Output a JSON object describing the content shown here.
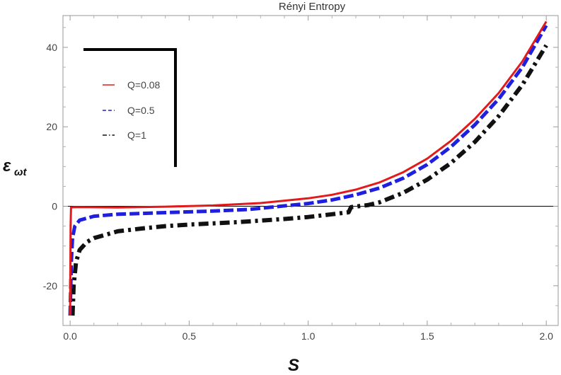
{
  "chart_data": {
    "type": "line",
    "title": "Rényi Entropy",
    "xlabel": "S",
    "ylabel_main": "ε",
    "ylabel_sub": "ωt",
    "xlim": [
      -0.03,
      2.05
    ],
    "ylim": [
      -30,
      48
    ],
    "x_ticks": [
      0.0,
      0.5,
      1.0,
      1.5,
      2.0
    ],
    "x_tick_labels": [
      "0.0",
      "0.5",
      "1.0",
      "1.5",
      "2.0"
    ],
    "y_ticks": [
      -20,
      0,
      20,
      40
    ],
    "y_tick_labels": [
      "-20",
      "0",
      "20",
      "40"
    ],
    "grid": false,
    "legend_position": "top-left",
    "series": [
      {
        "name": "Q=0.08",
        "color": "#e31a1c",
        "style": "solid",
        "points": [
          [
            0.0,
            -27.5
          ],
          [
            0.002,
            -5
          ],
          [
            0.004,
            -0.3
          ],
          [
            0.02,
            -0.2
          ],
          [
            0.2,
            -0.3
          ],
          [
            0.4,
            -0.1
          ],
          [
            0.6,
            0.2
          ],
          [
            0.8,
            0.8
          ],
          [
            1.0,
            2.0
          ],
          [
            1.1,
            2.9
          ],
          [
            1.2,
            4.2
          ],
          [
            1.3,
            6.0
          ],
          [
            1.4,
            8.6
          ],
          [
            1.5,
            12.0
          ],
          [
            1.6,
            16.5
          ],
          [
            1.7,
            22.0
          ],
          [
            1.8,
            28.5
          ],
          [
            1.9,
            36.5
          ],
          [
            2.0,
            46.5
          ]
        ]
      },
      {
        "name": "Q=0.5",
        "color": "#1f1fe0",
        "style": "dashed",
        "points": [
          [
            0.0,
            -27.5
          ],
          [
            0.005,
            -14
          ],
          [
            0.01,
            -8
          ],
          [
            0.02,
            -5
          ],
          [
            0.04,
            -3.5
          ],
          [
            0.1,
            -2.5
          ],
          [
            0.2,
            -2.0
          ],
          [
            0.4,
            -1.6
          ],
          [
            0.6,
            -1.2
          ],
          [
            0.75,
            -0.8
          ],
          [
            0.8,
            -0.5
          ],
          [
            1.0,
            0.7
          ],
          [
            1.1,
            1.6
          ],
          [
            1.2,
            2.9
          ],
          [
            1.3,
            4.6
          ],
          [
            1.4,
            7.1
          ],
          [
            1.5,
            10.5
          ],
          [
            1.6,
            15.0
          ],
          [
            1.7,
            20.5
          ],
          [
            1.8,
            27.0
          ],
          [
            1.9,
            35.0
          ],
          [
            2.0,
            45.5
          ]
        ]
      },
      {
        "name": "Q=1",
        "color": "#111111",
        "style": "dashdot",
        "points": [
          [
            0.01,
            -27.5
          ],
          [
            0.015,
            -20
          ],
          [
            0.025,
            -14
          ],
          [
            0.04,
            -11
          ],
          [
            0.07,
            -9
          ],
          [
            0.1,
            -8.0
          ],
          [
            0.2,
            -6.3
          ],
          [
            0.3,
            -5.6
          ],
          [
            0.4,
            -5.0
          ],
          [
            0.5,
            -4.6
          ],
          [
            0.6,
            -4.3
          ],
          [
            0.7,
            -4.0
          ],
          [
            0.8,
            -3.6
          ],
          [
            0.9,
            -3.2
          ],
          [
            1.0,
            -2.7
          ],
          [
            1.1,
            -2.0
          ],
          [
            1.17,
            -1.5
          ],
          [
            1.18,
            -0.2
          ],
          [
            1.25,
            0.3
          ],
          [
            1.3,
            1.0
          ],
          [
            1.4,
            3.4
          ],
          [
            1.5,
            6.7
          ],
          [
            1.6,
            10.9
          ],
          [
            1.7,
            16.2
          ],
          [
            1.8,
            22.7
          ],
          [
            1.9,
            30.6
          ],
          [
            2.0,
            40.5
          ]
        ]
      }
    ]
  }
}
